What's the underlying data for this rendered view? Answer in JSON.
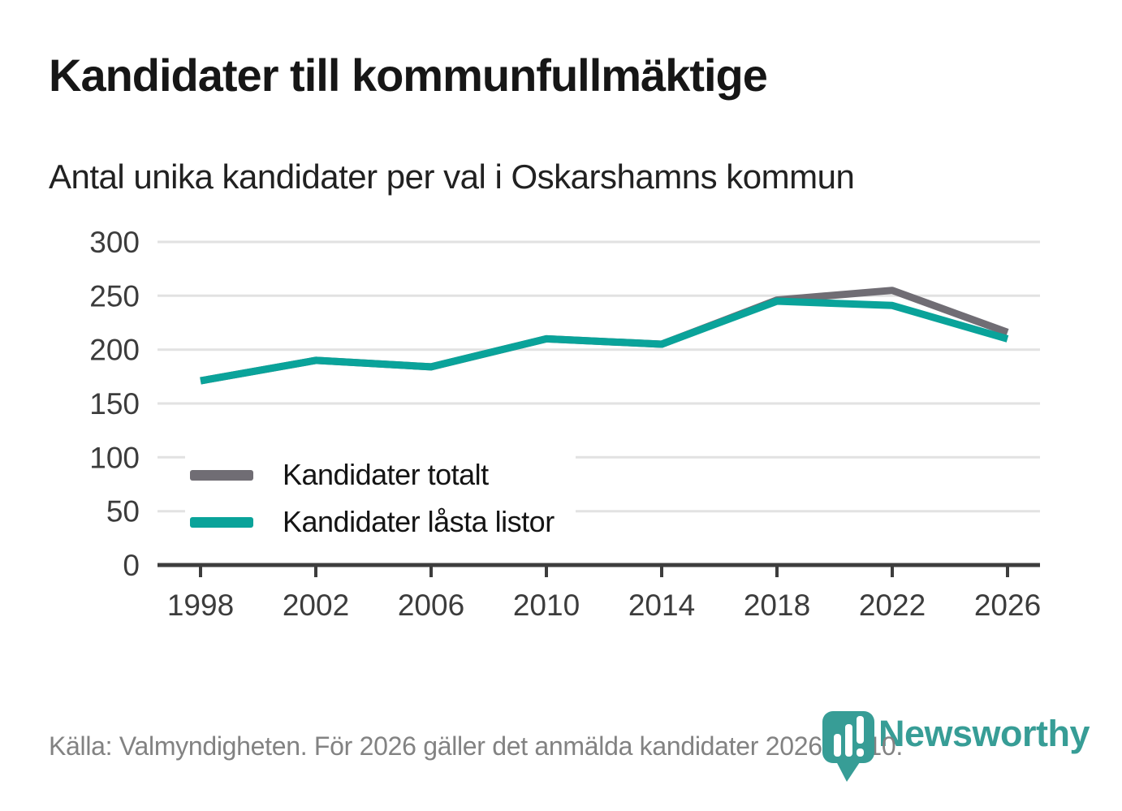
{
  "chart_data": {
    "type": "line",
    "title": "Kandidater till kommunfullmäktige",
    "subtitle": "Antal unika kandidater per val i Oskarshamns kommun",
    "x": [
      1998,
      2002,
      2006,
      2010,
      2014,
      2018,
      2022,
      2026
    ],
    "series": [
      {
        "name": "Kandidater totalt",
        "color": "#706d74",
        "values": [
          171,
          190,
          184,
          210,
          205,
          246,
          255,
          216
        ]
      },
      {
        "name": "Kandidater låsta listor",
        "color": "#0aa39a",
        "values": [
          171,
          190,
          184,
          210,
          205,
          245,
          241,
          210
        ]
      }
    ],
    "ylim": [
      0,
      300
    ],
    "yticks": [
      0,
      50,
      100,
      150,
      200,
      250,
      300
    ],
    "xlabel": "",
    "ylabel": "",
    "grid": "horizontal",
    "grid_color": "#e2e2e2",
    "axis_color": "#3d3d3d",
    "legend_position": "inside-left"
  },
  "footer": {
    "source_text": "Källa: Valmyndigheten. För 2026 gäller det anmälda kandidater 2026-04-10.",
    "logo_text": "Newsworthy",
    "logo_color": "#379d96",
    "text_color": "#828282"
  }
}
